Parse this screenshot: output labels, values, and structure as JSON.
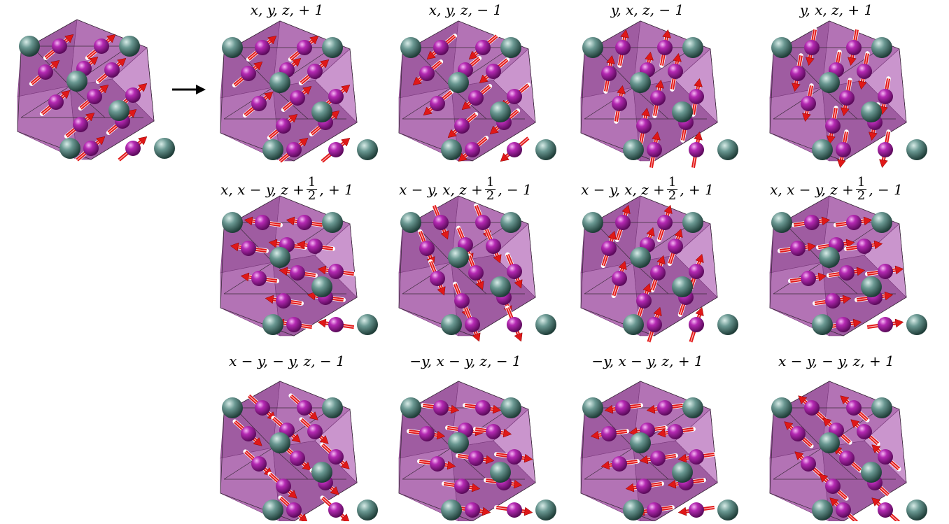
{
  "figure": {
    "source_panel": {
      "label": ""
    },
    "arrow": "right-arrow",
    "colors": {
      "polyhedron_dark": "#8e3f90",
      "polyhedron_mid": "#a65aa8",
      "polyhedron_light": "#c993cb",
      "atom_magenta": "#a020a0",
      "atom_teal": "#4f7f78",
      "moment_arrow": "#e01818",
      "edge_line": "#3a2a3a"
    },
    "panels": [
      {
        "row": 0,
        "col": 0,
        "label": "x, y, z, + 1",
        "direction": "up-right"
      },
      {
        "row": 0,
        "col": 1,
        "label": "x, y, z, − 1",
        "direction": "down-left"
      },
      {
        "row": 0,
        "col": 2,
        "label": "y, x, z, − 1",
        "direction": "up"
      },
      {
        "row": 0,
        "col": 3,
        "label": "y, x, z, + 1",
        "direction": "down"
      },
      {
        "row": 1,
        "col": 0,
        "label_pre": "x, x − y, z +",
        "label_post": ", + 1",
        "frac_num": "1",
        "frac_den": "2",
        "direction": "left"
      },
      {
        "row": 1,
        "col": 1,
        "label_pre": "x − y, x, z +",
        "label_post": ", − 1",
        "frac_num": "1",
        "frac_den": "2",
        "direction": "down-steep"
      },
      {
        "row": 1,
        "col": 2,
        "label_pre": "x − y, x, z +",
        "label_post": ", + 1",
        "frac_num": "1",
        "frac_den": "2",
        "direction": "up-steep"
      },
      {
        "row": 1,
        "col": 3,
        "label_pre": "x, x − y, z +",
        "label_post": ", − 1",
        "frac_num": "1",
        "frac_den": "2",
        "direction": "right"
      },
      {
        "row": 2,
        "col": 0,
        "label": "x − y, − y, z, − 1",
        "direction": "down-right"
      },
      {
        "row": 2,
        "col": 1,
        "label": "−y, x − y, z, − 1",
        "direction": "right-flat"
      },
      {
        "row": 2,
        "col": 2,
        "label": "−y, x − y, z, + 1",
        "direction": "left-flat"
      },
      {
        "row": 2,
        "col": 3,
        "label": "x − y, − y, z, + 1",
        "direction": "up-left"
      }
    ]
  }
}
